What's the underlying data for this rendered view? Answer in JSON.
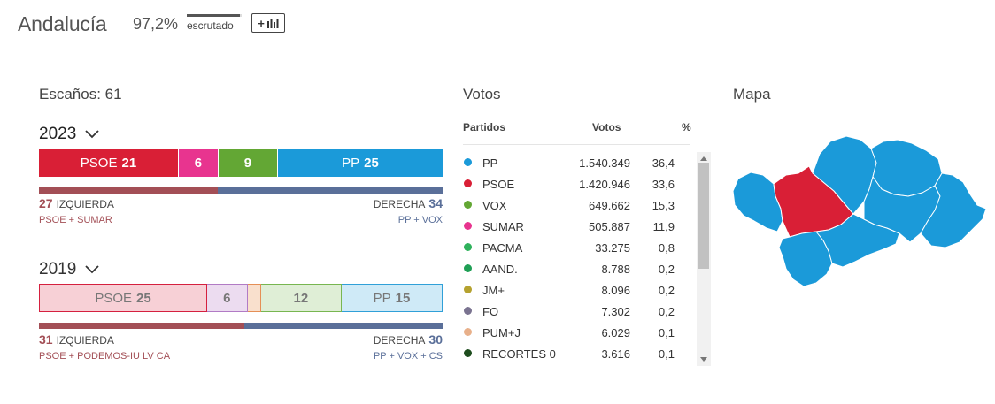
{
  "header": {
    "region": "Andalucía",
    "scrutinized_pct": "97,2%",
    "scrutinized_label": "escrutado",
    "scrutinized_fraction": 0.972,
    "chart_button_label": "+"
  },
  "seats": {
    "title": "Escaños: 61",
    "current": {
      "year": "2023",
      "segments": [
        {
          "name": "PSOE",
          "seats": "21",
          "value": 21,
          "color": "#d91f36"
        },
        {
          "name": "",
          "seats": "6",
          "value": 6,
          "color": "#e8348f"
        },
        {
          "name": "",
          "seats": "9",
          "value": 9,
          "color": "#63a734"
        },
        {
          "name": "PP",
          "seats": "25",
          "value": 25,
          "color": "#1b9ad9"
        }
      ],
      "left_bloc": {
        "num": "27",
        "label": "IZQUIERDA",
        "value": 27,
        "parties": "PSOE + SUMAR"
      },
      "right_bloc": {
        "num": "34",
        "label": "DERECHA",
        "value": 34,
        "parties": "PP + VOX"
      }
    },
    "previous": {
      "year": "2019",
      "segments": [
        {
          "name": "PSOE",
          "seats": "25",
          "value": 25,
          "color": "#f7d0d6",
          "border": "#d5203f"
        },
        {
          "name": "",
          "seats": "6",
          "value": 6,
          "color": "#ecdcf0",
          "border": "#b17bc5"
        },
        {
          "name": "",
          "seats": "",
          "value": 2,
          "color": "#f9e0cd",
          "border": "#e58f56"
        },
        {
          "name": "",
          "seats": "12",
          "value": 12,
          "color": "#dfeed6",
          "border": "#78b650"
        },
        {
          "name": "PP",
          "seats": "15",
          "value": 15,
          "color": "#cfeaf7",
          "border": "#30a0d8"
        }
      ],
      "left_bloc": {
        "num": "31",
        "label": "IZQUIERDA",
        "value": 31,
        "parties": "PSOE + PODEMOS-IU LV CA"
      },
      "right_bloc": {
        "num": "30",
        "label": "DERECHA",
        "value": 30,
        "parties": "PP + VOX + CS"
      }
    }
  },
  "votes": {
    "title": "Votos",
    "headers": {
      "party": "Partidos",
      "votes": "Votos",
      "pct": "%"
    },
    "rows": [
      {
        "party": "PP",
        "votes": "1.540.349",
        "pct": "36,4",
        "color": "#1b9ad9"
      },
      {
        "party": "PSOE",
        "votes": "1.420.946",
        "pct": "33,6",
        "color": "#d91f36"
      },
      {
        "party": "VOX",
        "votes": "649.662",
        "pct": "15,3",
        "color": "#63a734"
      },
      {
        "party": "SUMAR",
        "votes": "505.887",
        "pct": "11,9",
        "color": "#e8348f"
      },
      {
        "party": "PACMA",
        "votes": "33.275",
        "pct": "0,8",
        "color": "#2fb25c"
      },
      {
        "party": "AAND.",
        "votes": "8.788",
        "pct": "0,2",
        "color": "#1f9f55"
      },
      {
        "party": "JM+",
        "votes": "8.096",
        "pct": "0,2",
        "color": "#b5a22f"
      },
      {
        "party": "FO",
        "votes": "7.302",
        "pct": "0,2",
        "color": "#7a7390"
      },
      {
        "party": "PUM+J",
        "votes": "6.029",
        "pct": "0,1",
        "color": "#e8b08a"
      },
      {
        "party": "RECORTES 0",
        "votes": "3.616",
        "pct": "0,1",
        "color": "#1e4d1e"
      }
    ]
  },
  "map": {
    "title": "Mapa",
    "colors": {
      "pp": "#1b9ad9",
      "psoe": "#d91f36",
      "border": "#ffffff"
    }
  }
}
